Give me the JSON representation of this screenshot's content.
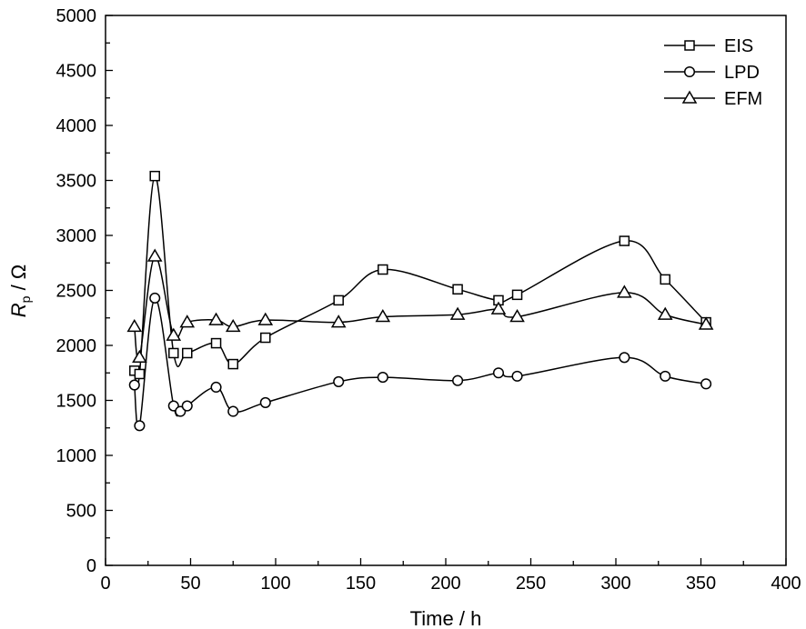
{
  "chart_data": {
    "type": "line",
    "title": "",
    "xlabel": "Time / h",
    "ylabel": {
      "main": "R",
      "sub": "p",
      "unit": " / Ω"
    },
    "xlim": [
      0,
      400
    ],
    "ylim": [
      0,
      5000
    ],
    "xticks": [
      0,
      50,
      100,
      150,
      200,
      250,
      300,
      350,
      400
    ],
    "yticks": [
      0,
      500,
      1000,
      1500,
      2000,
      2500,
      3000,
      3500,
      4000,
      4500,
      5000
    ],
    "grid": false,
    "legend_position": "top-right",
    "series": [
      {
        "name": "EIS",
        "marker": "square",
        "x": [
          17,
          20,
          29,
          40,
          48,
          65,
          75,
          94,
          137,
          163,
          207,
          231,
          242,
          305,
          329,
          353
        ],
        "y": [
          1770,
          1740,
          3540,
          1930,
          1930,
          2020,
          1830,
          2070,
          2410,
          2690,
          2510,
          2410,
          2460,
          2950,
          2600,
          2210
        ]
      },
      {
        "name": "LPD",
        "marker": "circle",
        "x": [
          17,
          20,
          29,
          40,
          44,
          48,
          65,
          75,
          94,
          137,
          163,
          207,
          231,
          242,
          305,
          329,
          353
        ],
        "y": [
          1640,
          1270,
          2430,
          1450,
          1400,
          1450,
          1620,
          1400,
          1480,
          1670,
          1710,
          1680,
          1750,
          1720,
          1890,
          1720,
          1650
        ]
      },
      {
        "name": "EFM",
        "marker": "triangle",
        "x": [
          17,
          20,
          29,
          40,
          48,
          65,
          75,
          94,
          137,
          163,
          207,
          231,
          242,
          305,
          329,
          353
        ],
        "y": [
          2170,
          1890,
          2810,
          2090,
          2210,
          2230,
          2170,
          2230,
          2210,
          2260,
          2280,
          2330,
          2260,
          2480,
          2280,
          2190
        ]
      }
    ]
  }
}
